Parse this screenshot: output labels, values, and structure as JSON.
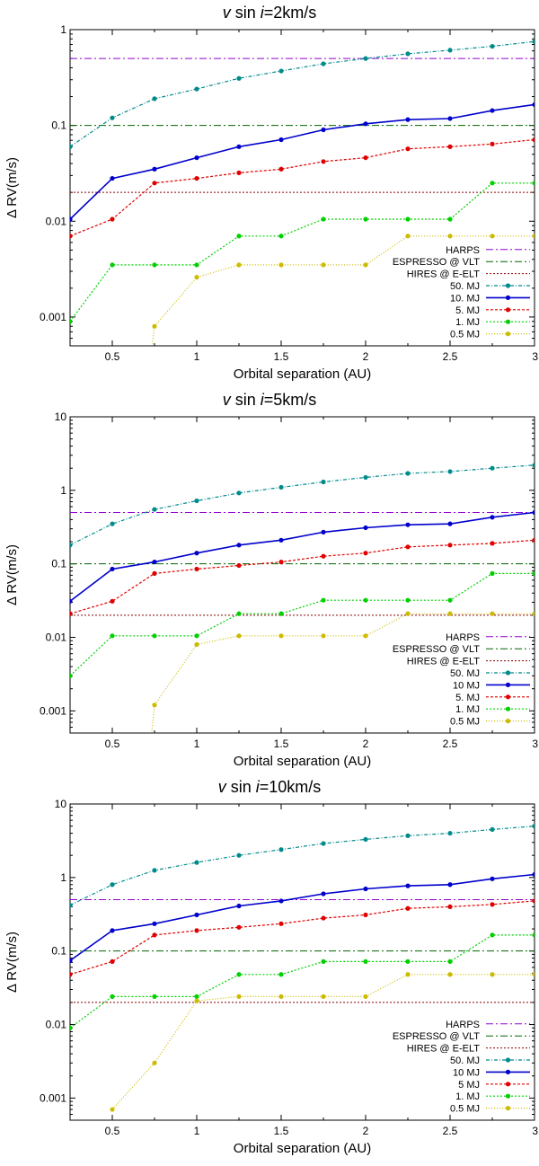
{
  "chart_data": [
    {
      "type": "line",
      "title_prefix": "v",
      "title_mid": " sin ",
      "title_i": "i",
      "title_suffix": "=2km/s",
      "xlabel": "Orbital separation (AU)",
      "ylabel": "Δ RV(m/s)",
      "xlim": [
        0.25,
        3
      ],
      "ylim": [
        0.0005,
        1
      ],
      "xticks": [
        "0.5",
        "1",
        "1.5",
        "2",
        "2.5",
        "3"
      ],
      "xtick_values": [
        0.5,
        1,
        1.5,
        2,
        2.5,
        3
      ],
      "yticks": [
        "0.001",
        "0.01",
        "0.1",
        "1"
      ],
      "ytick_values": [
        0.001,
        0.01,
        0.1,
        1
      ],
      "x": [
        0.25,
        0.5,
        0.75,
        1,
        1.25,
        1.5,
        1.75,
        2,
        2.25,
        2.5,
        2.75,
        3
      ],
      "hlines": [
        {
          "name": "HARPS",
          "value": 0.5,
          "color": "#9400d3",
          "dash": "8,3,2,3"
        },
        {
          "name": "ESPRESSO @ VLT",
          "value": 0.1,
          "color": "#006400",
          "dash": "8,3,2,3"
        },
        {
          "name": "HIRES @ E-ELT",
          "value": 0.02,
          "color": "#8b0000",
          "dash": "2,2"
        }
      ],
      "series": [
        {
          "name": "50. MJ",
          "color": "#008b8b",
          "dash": "4,2,1,2",
          "width": 1.2,
          "values": [
            0.06,
            0.12,
            0.19,
            0.24,
            0.31,
            0.37,
            0.44,
            0.5,
            0.56,
            0.61,
            0.67,
            0.75
          ]
        },
        {
          "name": "10. MJ",
          "color": "#0000cd",
          "dash": "",
          "width": 1.6,
          "values": [
            0.0105,
            0.028,
            0.035,
            0.046,
            0.06,
            0.071,
            0.09,
            0.104,
            0.115,
            0.118,
            0.143,
            0.165
          ]
        },
        {
          "name": "5. MJ",
          "color": "#e00000",
          "dash": "3,2",
          "width": 1.2,
          "values": [
            0.007,
            0.0105,
            0.025,
            0.028,
            0.032,
            0.035,
            0.042,
            0.046,
            0.057,
            0.06,
            0.064,
            0.071
          ]
        },
        {
          "name": "1. MJ",
          "color": "#00d000",
          "dash": "2,2",
          "width": 1.2,
          "values": [
            0.0009,
            0.0035,
            0.0035,
            0.0035,
            0.007,
            0.007,
            0.0105,
            0.0105,
            0.0105,
            0.0105,
            0.025,
            0.025
          ]
        },
        {
          "name": "0.5 MJ",
          "color": "#ccbb00",
          "dash": "1,2",
          "width": 1.2,
          "values": [
            null,
            null,
            0.0008,
            0.0026,
            0.0035,
            0.0035,
            0.0035,
            0.0035,
            0.007,
            0.007,
            0.007,
            0.007
          ],
          "lead_to_bottom": true
        }
      ]
    },
    {
      "type": "line",
      "title_prefix": "v",
      "title_mid": " sin ",
      "title_i": "i",
      "title_suffix": "=5km/s",
      "xlabel": "Orbital separation (AU)",
      "ylabel": "Δ RV(m/s)",
      "xlim": [
        0.25,
        3
      ],
      "ylim": [
        0.0005,
        10
      ],
      "xticks": [
        "0.5",
        "1",
        "1.5",
        "2",
        "2.5",
        "3"
      ],
      "xtick_values": [
        0.5,
        1,
        1.5,
        2,
        2.5,
        3
      ],
      "yticks": [
        "0.001",
        "0.01",
        "0.1",
        "1",
        "10"
      ],
      "ytick_values": [
        0.001,
        0.01,
        0.1,
        1,
        10
      ],
      "x": [
        0.25,
        0.5,
        0.75,
        1,
        1.25,
        1.5,
        1.75,
        2,
        2.25,
        2.5,
        2.75,
        3
      ],
      "hlines": [
        {
          "name": "HARPS",
          "value": 0.5,
          "color": "#9400d3",
          "dash": "8,3,2,3"
        },
        {
          "name": "ESPRESSO @ VLT",
          "value": 0.1,
          "color": "#006400",
          "dash": "8,3,2,3"
        },
        {
          "name": "HIRES @ E-ELT",
          "value": 0.02,
          "color": "#8b0000",
          "dash": "2,2"
        }
      ],
      "series": [
        {
          "name": "50. MJ",
          "color": "#008b8b",
          "dash": "4,2,1,2",
          "width": 1.2,
          "values": [
            0.18,
            0.35,
            0.55,
            0.72,
            0.92,
            1.1,
            1.3,
            1.5,
            1.7,
            1.8,
            2.0,
            2.2
          ]
        },
        {
          "name": "10 MJ",
          "color": "#0000cd",
          "dash": "",
          "width": 1.6,
          "values": [
            0.031,
            0.085,
            0.106,
            0.14,
            0.18,
            0.21,
            0.27,
            0.31,
            0.34,
            0.35,
            0.43,
            0.5
          ]
        },
        {
          "name": "5. MJ",
          "color": "#e00000",
          "dash": "3,2",
          "width": 1.2,
          "values": [
            0.021,
            0.031,
            0.074,
            0.085,
            0.095,
            0.106,
            0.127,
            0.14,
            0.17,
            0.18,
            0.19,
            0.21
          ]
        },
        {
          "name": "1. MJ",
          "color": "#00d000",
          "dash": "2,2",
          "width": 1.2,
          "values": [
            0.003,
            0.0105,
            0.0105,
            0.0105,
            0.021,
            0.021,
            0.032,
            0.032,
            0.032,
            0.032,
            0.074,
            0.074
          ]
        },
        {
          "name": "0.5 MJ",
          "color": "#ccbb00",
          "dash": "1,2",
          "width": 1.2,
          "values": [
            null,
            null,
            0.0012,
            0.008,
            0.0105,
            0.0105,
            0.0105,
            0.0105,
            0.021,
            0.021,
            0.021,
            0.021
          ],
          "lead_to_bottom": true
        }
      ]
    },
    {
      "type": "line",
      "title_prefix": "v",
      "title_mid": " sin ",
      "title_i": "i",
      "title_suffix": "=10km/s",
      "xlabel": "Orbital separation (AU)",
      "ylabel": "Δ RV(m/s)",
      "xlim": [
        0.25,
        3
      ],
      "ylim": [
        0.0005,
        10
      ],
      "xticks": [
        "0.5",
        "1",
        "1.5",
        "2",
        "2.5",
        "3"
      ],
      "xtick_values": [
        0.5,
        1,
        1.5,
        2,
        2.5,
        3
      ],
      "yticks": [
        "0.001",
        "0.01",
        "0.1",
        "1",
        "10"
      ],
      "ytick_values": [
        0.001,
        0.01,
        0.1,
        1,
        10
      ],
      "x": [
        0.25,
        0.5,
        0.75,
        1,
        1.25,
        1.5,
        1.75,
        2,
        2.25,
        2.5,
        2.75,
        3
      ],
      "hlines": [
        {
          "name": "HARPS",
          "value": 0.5,
          "color": "#9400d3",
          "dash": "8,3,2,3"
        },
        {
          "name": "ESPRESSO @ VLT",
          "value": 0.1,
          "color": "#006400",
          "dash": "8,3,2,3"
        },
        {
          "name": "HIRES @ E-ELT",
          "value": 0.02,
          "color": "#8b0000",
          "dash": "2,2"
        }
      ],
      "series": [
        {
          "name": "50. MJ",
          "color": "#008b8b",
          "dash": "4,2,1,2",
          "width": 1.2,
          "values": [
            0.42,
            0.8,
            1.25,
            1.6,
            2.0,
            2.4,
            2.9,
            3.3,
            3.7,
            4.0,
            4.5,
            5.0
          ]
        },
        {
          "name": "10 MJ",
          "color": "#0000cd",
          "dash": "",
          "width": 1.6,
          "values": [
            0.074,
            0.19,
            0.235,
            0.31,
            0.41,
            0.48,
            0.6,
            0.7,
            0.77,
            0.8,
            0.96,
            1.1
          ]
        },
        {
          "name": "5 MJ",
          "color": "#e00000",
          "dash": "3,2",
          "width": 1.2,
          "values": [
            0.048,
            0.072,
            0.165,
            0.19,
            0.21,
            0.235,
            0.28,
            0.31,
            0.38,
            0.4,
            0.43,
            0.48
          ]
        },
        {
          "name": "1. MJ",
          "color": "#00d000",
          "dash": "2,2",
          "width": 1.2,
          "values": [
            0.009,
            0.024,
            0.024,
            0.024,
            0.048,
            0.048,
            0.072,
            0.072,
            0.072,
            0.072,
            0.165,
            0.165
          ]
        },
        {
          "name": "0.5 MJ",
          "color": "#ccbb00",
          "dash": "1,2",
          "width": 1.2,
          "values": [
            null,
            0.0007,
            0.003,
            0.021,
            0.024,
            0.024,
            0.024,
            0.024,
            0.048,
            0.048,
            0.048,
            0.048
          ]
        }
      ]
    }
  ]
}
